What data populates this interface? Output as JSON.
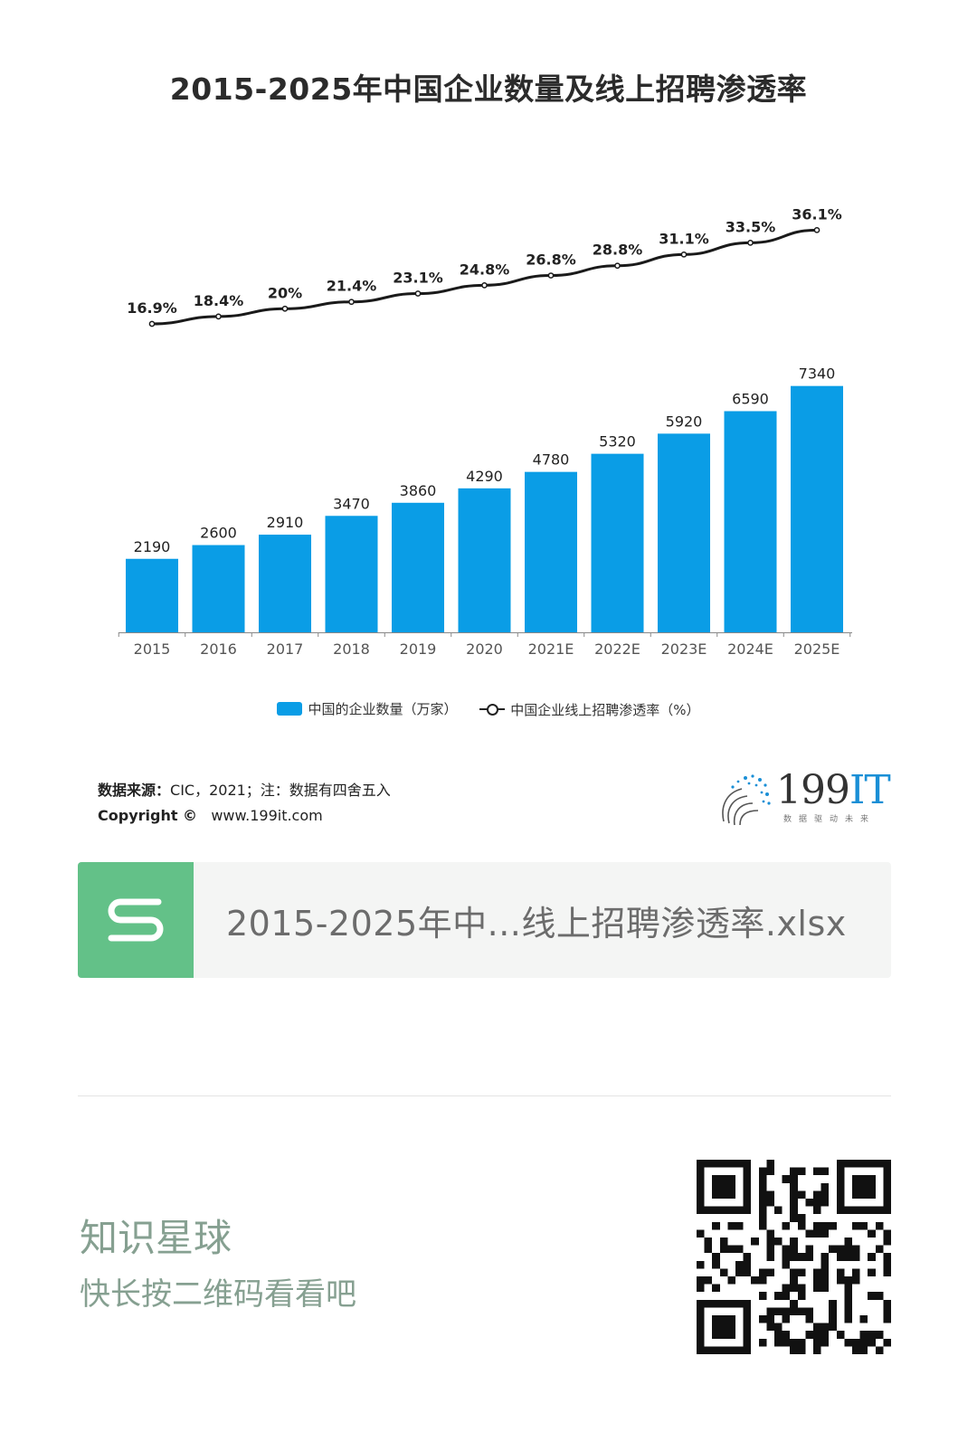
{
  "title": "2015-2025年中国企业数量及线上招聘渗透率",
  "chart_data": {
    "type": "bar+line",
    "categories": [
      "2015",
      "2016",
      "2017",
      "2018",
      "2019",
      "2020",
      "2021E",
      "2022E",
      "2023E",
      "2024E",
      "2025E"
    ],
    "series": [
      {
        "name": "中国的企业数量（万家）",
        "type": "bar",
        "values": [
          2190,
          2600,
          2910,
          3470,
          3860,
          4290,
          4780,
          5320,
          5920,
          6590,
          7340
        ],
        "labels": [
          "2190",
          "2600",
          "2910",
          "3470",
          "3860",
          "4290",
          "4780",
          "5320",
          "5920",
          "6590",
          "7340"
        ],
        "color": "#0a9de6"
      },
      {
        "name": "中国企业线上招聘渗透率（%）",
        "type": "line",
        "values": [
          16.9,
          18.4,
          20,
          21.4,
          23.1,
          24.8,
          26.8,
          28.8,
          31.1,
          33.5,
          36.1
        ],
        "labels": [
          "16.9%",
          "18.4%",
          "20%",
          "21.4%",
          "23.1%",
          "24.8%",
          "26.8%",
          "28.8%",
          "31.1%",
          "33.5%",
          "36.1%"
        ],
        "color": "#1a1a1a"
      }
    ],
    "legend_position": "bottom-center",
    "grid": false
  },
  "legend": {
    "bar_label": "中国的企业数量（万家）",
    "line_label": "中国企业线上招聘渗透率（%）"
  },
  "source": {
    "line1_bold": "数据来源：",
    "line1_rest": "CIC，2021；注：数据有四舍五入",
    "line2_bold": "Copyright ©",
    "line2_rest": "www.199it.com"
  },
  "logo": {
    "num": "199",
    "it": "IT",
    "tagline": "数据驱动未来"
  },
  "file_card": {
    "icon": "spreadsheet-s-icon",
    "name": "2015-2025年中...线上招聘渗透率.xlsx",
    "icon_color": "#63c188"
  },
  "brand": {
    "title": "知识星球",
    "subtitle": "快长按二维码看看吧"
  },
  "qr_icon": "qr-code-icon"
}
